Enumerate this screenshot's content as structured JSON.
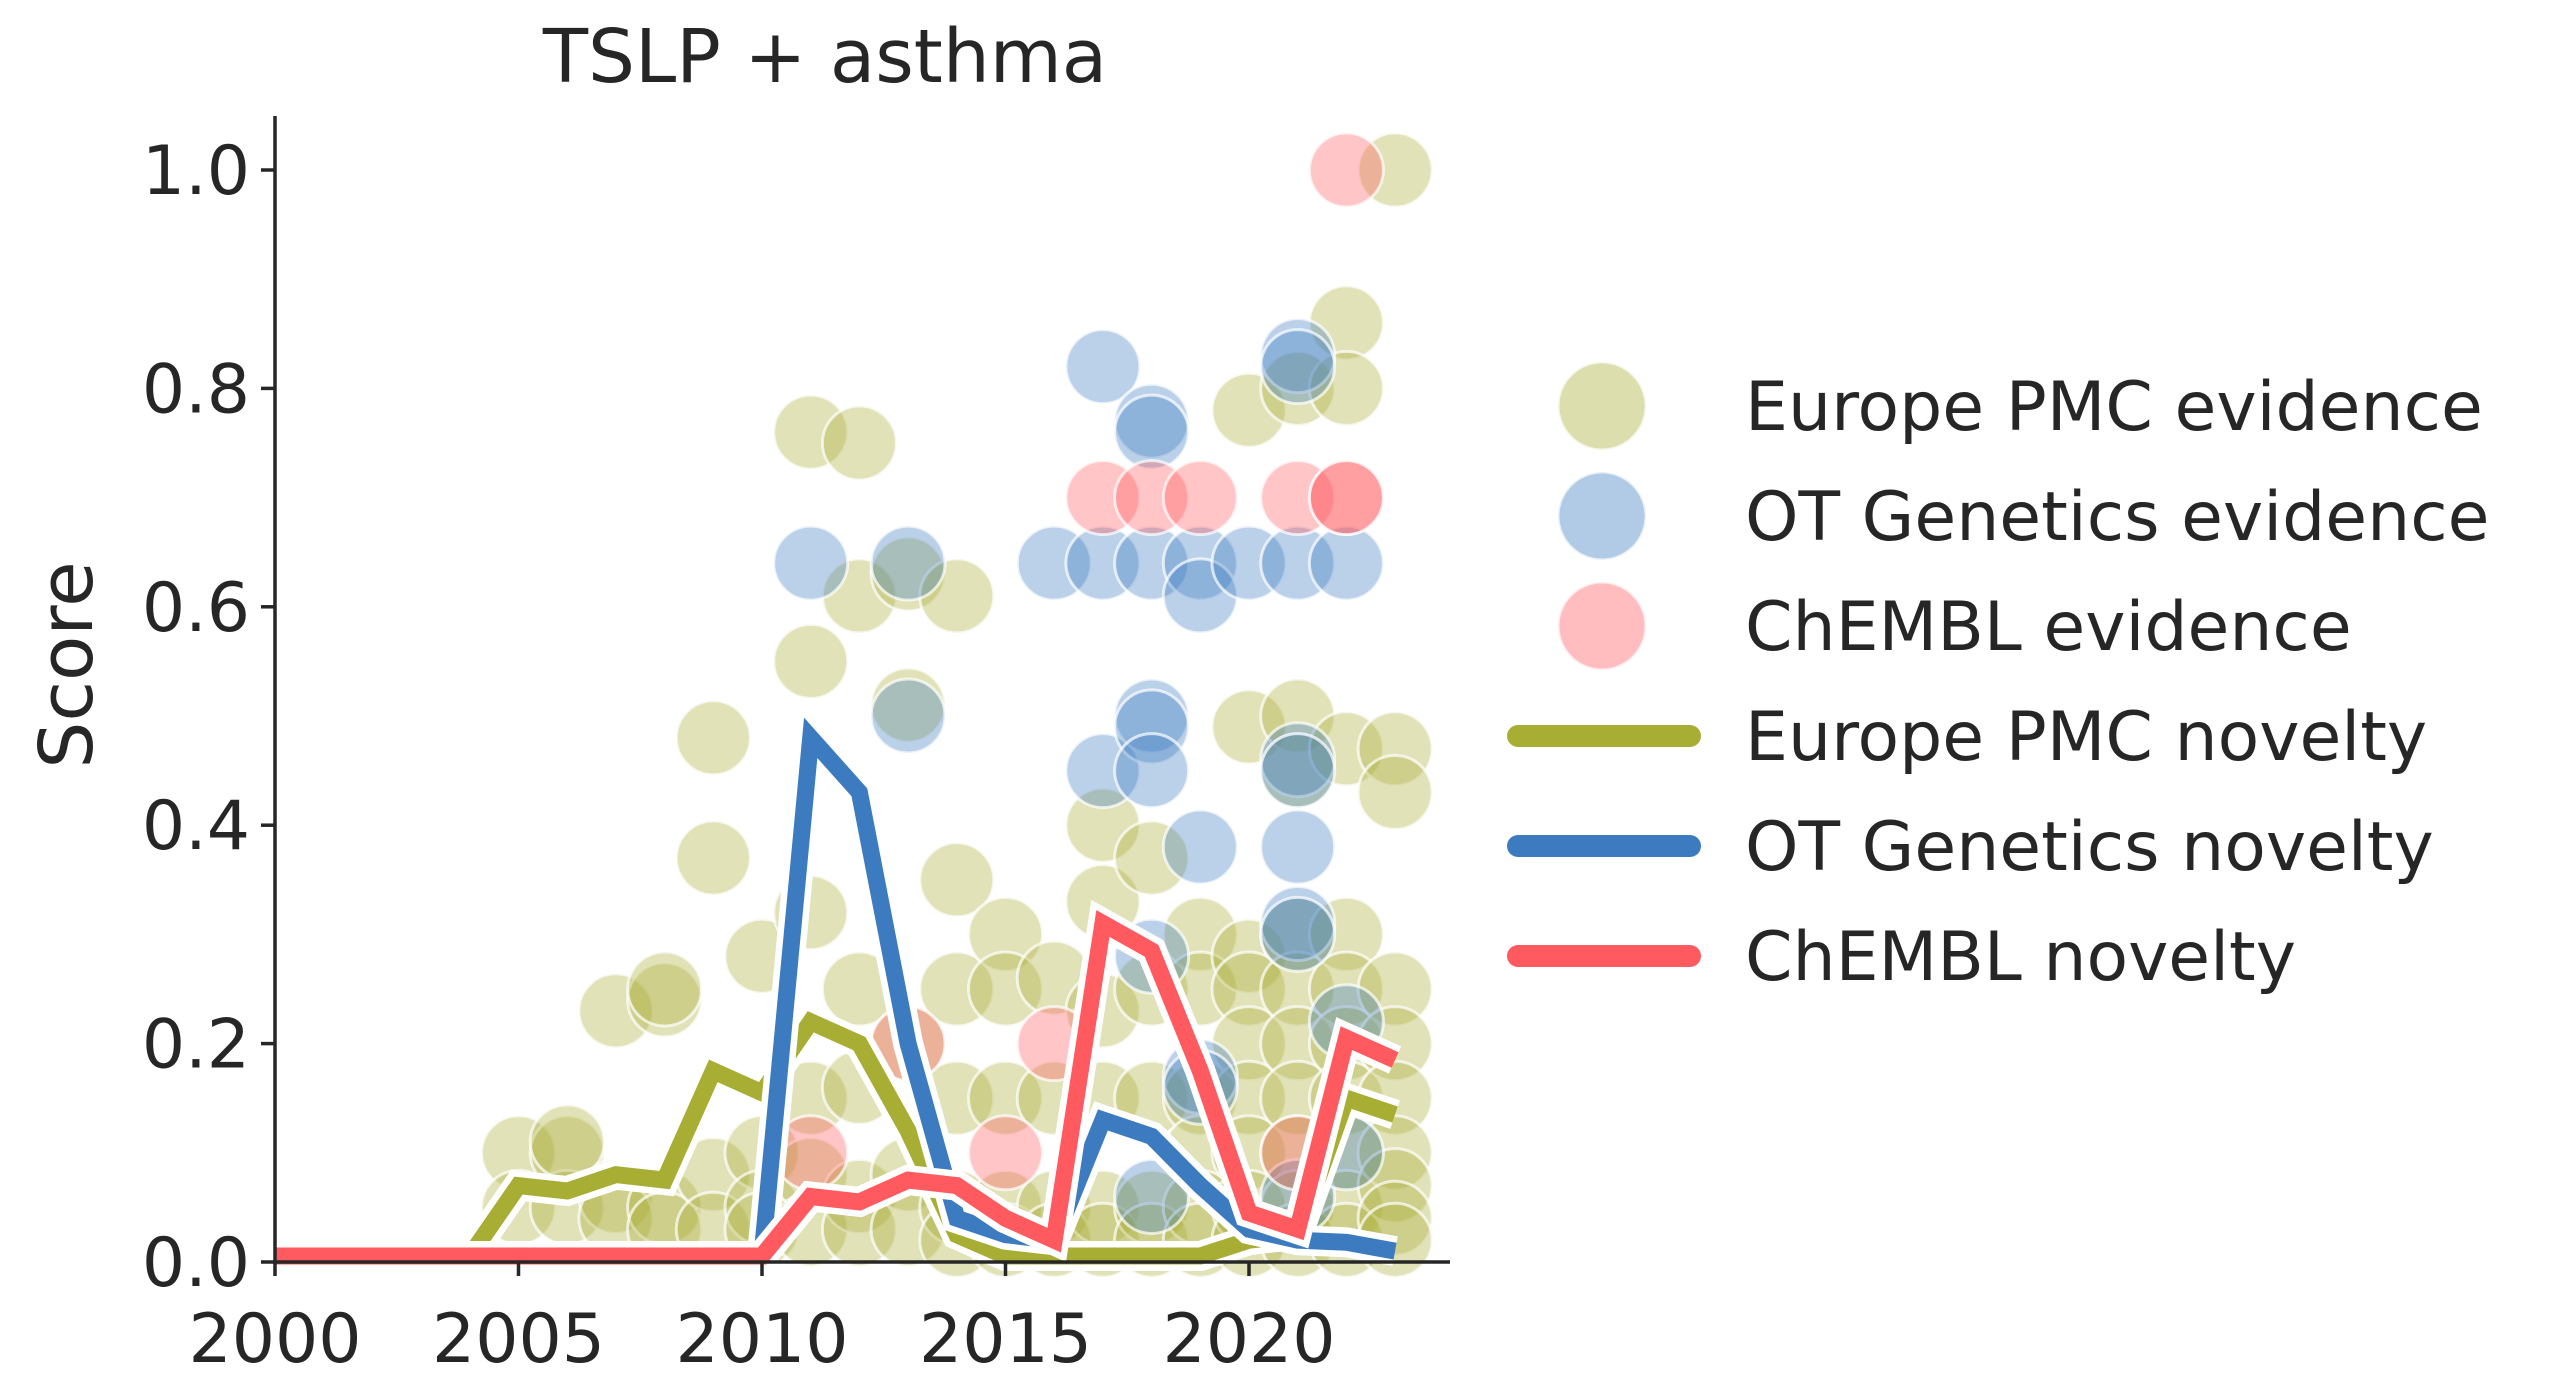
{
  "chart_data": {
    "type": "scatter",
    "title": "TSLP + asthma",
    "xlabel": "",
    "ylabel": "Score",
    "xlim": [
      2000,
      2024
    ],
    "ylim": [
      0,
      1.05
    ],
    "xticks": [
      "2000",
      "2005",
      "2010",
      "2015",
      "2020"
    ],
    "xtick_values": [
      2000,
      2005,
      2010,
      2015,
      2020
    ],
    "yticks": [
      "0.0",
      "0.2",
      "0.4",
      "0.6",
      "0.8",
      "1.0"
    ],
    "ytick_values": [
      0,
      0.2,
      0.4,
      0.6,
      0.8,
      1.0
    ],
    "grid": false,
    "legend_position": "right",
    "colors": {
      "europe_pmc": "#a8ad33",
      "ot_genetics": "#3c7bbf",
      "chembl": "#ff5a5f"
    },
    "legend": [
      {
        "label": "Europe PMC evidence",
        "kind": "marker",
        "color": "#a8ad33"
      },
      {
        "label": "OT Genetics evidence",
        "kind": "marker",
        "color": "#3c7bbf"
      },
      {
        "label": "ChEMBL evidence",
        "kind": "marker",
        "color": "#ff5a5f"
      },
      {
        "label": "Europe PMC novelty",
        "kind": "line",
        "color": "#a8ad33"
      },
      {
        "label": "OT Genetics novelty",
        "kind": "line",
        "color": "#3c7bbf"
      },
      {
        "label": "ChEMBL novelty",
        "kind": "line",
        "color": "#ff5a5f"
      }
    ],
    "scatter_series": [
      {
        "name": "Europe PMC evidence",
        "color": "#a8ad33",
        "points": [
          [
            2005,
            0.1
          ],
          [
            2005,
            0.05
          ],
          [
            2006,
            0.1
          ],
          [
            2006,
            0.05
          ],
          [
            2006,
            0.11
          ],
          [
            2007,
            0.23
          ],
          [
            2007,
            0.06
          ],
          [
            2007,
            0.04
          ],
          [
            2008,
            0.24
          ],
          [
            2008,
            0.25
          ],
          [
            2008,
            0.05
          ],
          [
            2008,
            0.03
          ],
          [
            2009,
            0.48
          ],
          [
            2009,
            0.37
          ],
          [
            2009,
            0.08
          ],
          [
            2009,
            0.03
          ],
          [
            2010,
            0.28
          ],
          [
            2010,
            0.1
          ],
          [
            2010,
            0.05
          ],
          [
            2010,
            0.03
          ],
          [
            2011,
            0.76
          ],
          [
            2011,
            0.55
          ],
          [
            2011,
            0.32
          ],
          [
            2011,
            0.15
          ],
          [
            2011,
            0.08
          ],
          [
            2011,
            0.03
          ],
          [
            2012,
            0.75
          ],
          [
            2012,
            0.61
          ],
          [
            2012,
            0.25
          ],
          [
            2012,
            0.16
          ],
          [
            2012,
            0.06
          ],
          [
            2012,
            0.03
          ],
          [
            2013,
            0.63
          ],
          [
            2013,
            0.51
          ],
          [
            2013,
            0.2
          ],
          [
            2013,
            0.08
          ],
          [
            2013,
            0.03
          ],
          [
            2014,
            0.61
          ],
          [
            2014,
            0.35
          ],
          [
            2014,
            0.25
          ],
          [
            2014,
            0.15
          ],
          [
            2014,
            0.05
          ],
          [
            2014,
            0.02
          ],
          [
            2015,
            0.3
          ],
          [
            2015,
            0.25
          ],
          [
            2015,
            0.15
          ],
          [
            2015,
            0.05
          ],
          [
            2015,
            0.02
          ],
          [
            2016,
            0.26
          ],
          [
            2016,
            0.15
          ],
          [
            2016,
            0.05
          ],
          [
            2016,
            0.02
          ],
          [
            2017,
            0.33
          ],
          [
            2017,
            0.4
          ],
          [
            2017,
            0.23
          ],
          [
            2017,
            0.15
          ],
          [
            2017,
            0.05
          ],
          [
            2017,
            0.02
          ],
          [
            2018,
            0.37
          ],
          [
            2018,
            0.25
          ],
          [
            2018,
            0.15
          ],
          [
            2018,
            0.05
          ],
          [
            2018,
            0.02
          ],
          [
            2019,
            0.3
          ],
          [
            2019,
            0.25
          ],
          [
            2019,
            0.15
          ],
          [
            2019,
            0.1
          ],
          [
            2019,
            0.05
          ],
          [
            2019,
            0.02
          ],
          [
            2020,
            0.78
          ],
          [
            2020,
            0.49
          ],
          [
            2020,
            0.28
          ],
          [
            2020,
            0.25
          ],
          [
            2020,
            0.2
          ],
          [
            2020,
            0.15
          ],
          [
            2020,
            0.1
          ],
          [
            2020,
            0.05
          ],
          [
            2020,
            0.02
          ],
          [
            2021,
            0.8
          ],
          [
            2021,
            0.5
          ],
          [
            2021,
            0.45
          ],
          [
            2021,
            0.3
          ],
          [
            2021,
            0.25
          ],
          [
            2021,
            0.2
          ],
          [
            2021,
            0.15
          ],
          [
            2021,
            0.1
          ],
          [
            2021,
            0.05
          ],
          [
            2021,
            0.02
          ],
          [
            2022,
            0.86
          ],
          [
            2022,
            0.8
          ],
          [
            2022,
            0.47
          ],
          [
            2022,
            0.3
          ],
          [
            2022,
            0.25
          ],
          [
            2022,
            0.2
          ],
          [
            2022,
            0.15
          ],
          [
            2022,
            0.1
          ],
          [
            2022,
            0.05
          ],
          [
            2022,
            0.02
          ],
          [
            2023,
            1.0
          ],
          [
            2023,
            0.47
          ],
          [
            2023,
            0.43
          ],
          [
            2023,
            0.25
          ],
          [
            2023,
            0.2
          ],
          [
            2023,
            0.15
          ],
          [
            2023,
            0.1
          ],
          [
            2023,
            0.07
          ],
          [
            2023,
            0.04
          ],
          [
            2023,
            0.02
          ]
        ]
      },
      {
        "name": "OT Genetics evidence",
        "color": "#3c7bbf",
        "points": [
          [
            2011,
            0.64
          ],
          [
            2013,
            0.64
          ],
          [
            2013,
            0.5
          ],
          [
            2016,
            0.64
          ],
          [
            2017,
            0.82
          ],
          [
            2017,
            0.64
          ],
          [
            2017,
            0.45
          ],
          [
            2018,
            0.77
          ],
          [
            2018,
            0.76
          ],
          [
            2018,
            0.64
          ],
          [
            2018,
            0.5
          ],
          [
            2018,
            0.49
          ],
          [
            2018,
            0.45
          ],
          [
            2018,
            0.28
          ],
          [
            2018,
            0.06
          ],
          [
            2019,
            0.64
          ],
          [
            2019,
            0.61
          ],
          [
            2019,
            0.38
          ],
          [
            2019,
            0.17
          ],
          [
            2019,
            0.16
          ],
          [
            2020,
            0.64
          ],
          [
            2021,
            0.83
          ],
          [
            2021,
            0.82
          ],
          [
            2021,
            0.64
          ],
          [
            2021,
            0.46
          ],
          [
            2021,
            0.45
          ],
          [
            2021,
            0.38
          ],
          [
            2021,
            0.31
          ],
          [
            2021,
            0.3
          ],
          [
            2021,
            0.06
          ],
          [
            2022,
            0.64
          ],
          [
            2022,
            0.22
          ],
          [
            2022,
            0.1
          ]
        ]
      },
      {
        "name": "ChEMBL evidence",
        "color": "#ff5a5f",
        "points": [
          [
            2011,
            0.1
          ],
          [
            2013,
            0.2
          ],
          [
            2015,
            0.1
          ],
          [
            2016,
            0.2
          ],
          [
            2017,
            0.7
          ],
          [
            2018,
            0.7
          ],
          [
            2019,
            0.7
          ],
          [
            2021,
            0.7
          ],
          [
            2021,
            0.1
          ],
          [
            2022,
            1.0
          ],
          [
            2022,
            0.7
          ],
          [
            2022,
            0.7
          ]
        ]
      }
    ],
    "line_series": [
      {
        "name": "Europe PMC novelty",
        "color": "#a8ad33",
        "x": [
          2000,
          2001,
          2002,
          2003,
          2004,
          2005,
          2006,
          2007,
          2008,
          2009,
          2010,
          2011,
          2012,
          2013,
          2014,
          2015,
          2016,
          2017,
          2018,
          2019,
          2020,
          2021,
          2022,
          2023
        ],
        "y": [
          0,
          0,
          0,
          0,
          0,
          0.07,
          0.065,
          0.08,
          0.075,
          0.175,
          0.155,
          0.22,
          0.2,
          0.12,
          0.025,
          0.005,
          0.003,
          0.003,
          0.003,
          0.003,
          0.02,
          0.025,
          0.15,
          0.135
        ]
      },
      {
        "name": "OT Genetics novelty",
        "color": "#3c7bbf",
        "x": [
          2000,
          2001,
          2002,
          2003,
          2004,
          2005,
          2006,
          2007,
          2008,
          2009,
          2010,
          2011,
          2012,
          2013,
          2014,
          2015,
          2016,
          2017,
          2018,
          2019,
          2020,
          2021,
          2022,
          2023
        ],
        "y": [
          0,
          0,
          0,
          0,
          0,
          0,
          0,
          0,
          0,
          0,
          0,
          0.48,
          0.43,
          0.2,
          0.04,
          0.025,
          0.02,
          0.13,
          0.115,
          0.07,
          0.03,
          0.02,
          0.018,
          0.01
        ]
      },
      {
        "name": "ChEMBL novelty",
        "color": "#ff5a5f",
        "x": [
          2000,
          2001,
          2002,
          2003,
          2004,
          2005,
          2006,
          2007,
          2008,
          2009,
          2010,
          2011,
          2012,
          2013,
          2014,
          2015,
          2016,
          2017,
          2018,
          2019,
          2020,
          2021,
          2022,
          2023
        ],
        "y": [
          0,
          0,
          0,
          0,
          0,
          0,
          0,
          0,
          0,
          0,
          0,
          0.06,
          0.055,
          0.075,
          0.07,
          0.04,
          0.02,
          0.31,
          0.285,
          0.175,
          0.045,
          0.03,
          0.205,
          0.185
        ]
      }
    ]
  }
}
